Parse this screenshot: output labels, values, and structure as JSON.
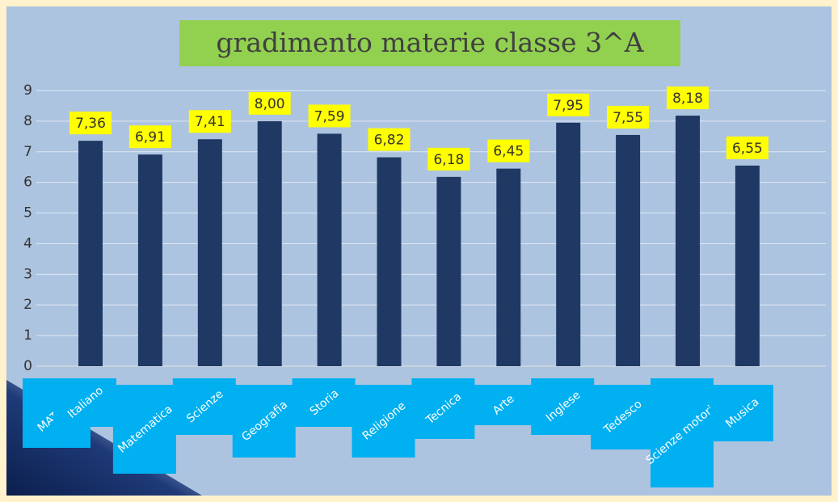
{
  "chart_data": {
    "type": "bar",
    "title": "gradimento materie classe 3^A",
    "x_label": "MATERIE",
    "categories": [
      "Italiano",
      "Matematica",
      "Scienze",
      "Geografia",
      "Storia",
      "Religione",
      "Tecnica",
      "Arte",
      "Inglese",
      "Tedesco",
      "Scienze motorie",
      "Musica"
    ],
    "values": [
      7.36,
      6.91,
      7.41,
      8.0,
      7.59,
      6.82,
      6.18,
      6.45,
      7.95,
      7.55,
      8.18,
      6.55
    ],
    "value_labels": [
      "7,36",
      "6,91",
      "7,41",
      "8,00",
      "7,59",
      "6,82",
      "6,18",
      "6,45",
      "7,95",
      "7,55",
      "8,18",
      "6,55"
    ],
    "color": "#1f3864",
    "ylim": [
      0,
      9
    ],
    "yticks": [
      0,
      1,
      2,
      3,
      4,
      5,
      6,
      7,
      8,
      9
    ],
    "grid": true
  }
}
